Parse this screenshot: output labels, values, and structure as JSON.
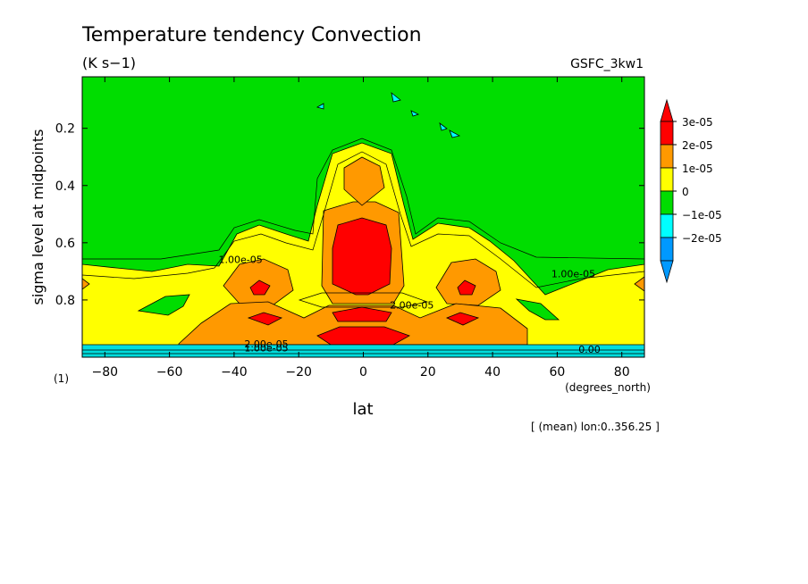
{
  "chart_data": {
    "type": "heatmap",
    "title": "Temperature tendency Convection",
    "units": "(K s−1)",
    "dataset": "GSFC_3kw1",
    "xlabel": "lat",
    "xunits": "(degrees_north)",
    "ylabel": "sigma level at midpoints",
    "yunits": "(1)",
    "footnote": "[ (mean) lon:0..356.25 ]",
    "xlim": [
      -87,
      87
    ],
    "ylim": [
      1.0,
      0.02
    ],
    "xticks": [
      -80,
      -60,
      -40,
      -20,
      0,
      20,
      40,
      60,
      80
    ],
    "yticks": [
      0.2,
      0.4,
      0.6,
      0.8
    ],
    "colorbar": {
      "labels": [
        "3e-05",
        "2e-05",
        "1e-05",
        "0",
        "−1e-05",
        "−2e-05"
      ],
      "colors": [
        "#ff0000",
        "#ff9900",
        "#ffff00",
        "#00dd00",
        "#00ffff",
        "#0099ff"
      ]
    },
    "contour_labels": [
      {
        "text": "1.00e-05",
        "lat": -38,
        "sigma": 0.67
      },
      {
        "text": "1.00e-05",
        "lat": 65,
        "sigma": 0.72
      },
      {
        "text": "2.00e-05",
        "lat": 15,
        "sigma": 0.83
      },
      {
        "text": "2.00e-05",
        "lat": -30,
        "sigma": 0.965
      },
      {
        "text": "1.00e-05",
        "lat": -30,
        "sigma": 0.98
      },
      {
        "text": "0.00",
        "lat": 70,
        "sigma": 0.985
      }
    ]
  }
}
